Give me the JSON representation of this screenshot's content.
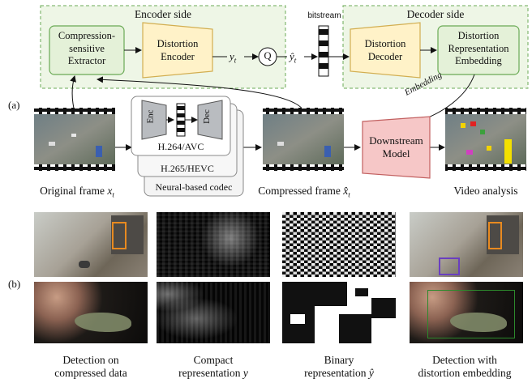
{
  "panel_a": {
    "label": "(a)",
    "encoder_side": {
      "title": "Encoder side",
      "extractor": [
        "Compression-",
        "sensitive",
        "Extractor"
      ],
      "encoder": [
        "Distortion",
        "Encoder"
      ]
    },
    "decoder_side": {
      "title": "Decoder side",
      "decoder": [
        "Distortion",
        "Decoder"
      ],
      "embedding": [
        "Distortion",
        "Representation",
        "Embedding"
      ]
    },
    "symbols": {
      "y": "y",
      "y_sub": "t",
      "q": "Q",
      "yhat": "ŷ",
      "yhat_sub": "t"
    },
    "bitstream": "bitstream",
    "codecs": {
      "enc": "Enc",
      "dec": "Dec",
      "list": [
        "H.264/AVC",
        "H.265/HEVC",
        "Neural-based codec"
      ]
    },
    "embedding_arrow": "Embedding",
    "downstream": [
      "Downstream",
      "Model"
    ],
    "frames": {
      "original": "Original frame",
      "original_sym": "x",
      "original_sub": "t",
      "compressed": "Compressed frame",
      "compressed_sym": "x̂",
      "compressed_sub": "t",
      "analysis": "Video analysis"
    }
  },
  "panel_b": {
    "label": "(b)",
    "captions": [
      [
        "Detection on",
        "compressed data"
      ],
      [
        "Compact",
        "representation",
        "y"
      ],
      [
        "Binary",
        "representation",
        "ŷ"
      ],
      [
        "Detection with",
        "distortion embedding"
      ]
    ]
  },
  "colors": {
    "green_fill": "#eef6e6",
    "green_border": "#6aaa55",
    "yellow_fill": "#fff2c8",
    "yellow_border": "#d2ae50",
    "red_fill": "#f6c7c7",
    "red_border": "#c26060"
  }
}
